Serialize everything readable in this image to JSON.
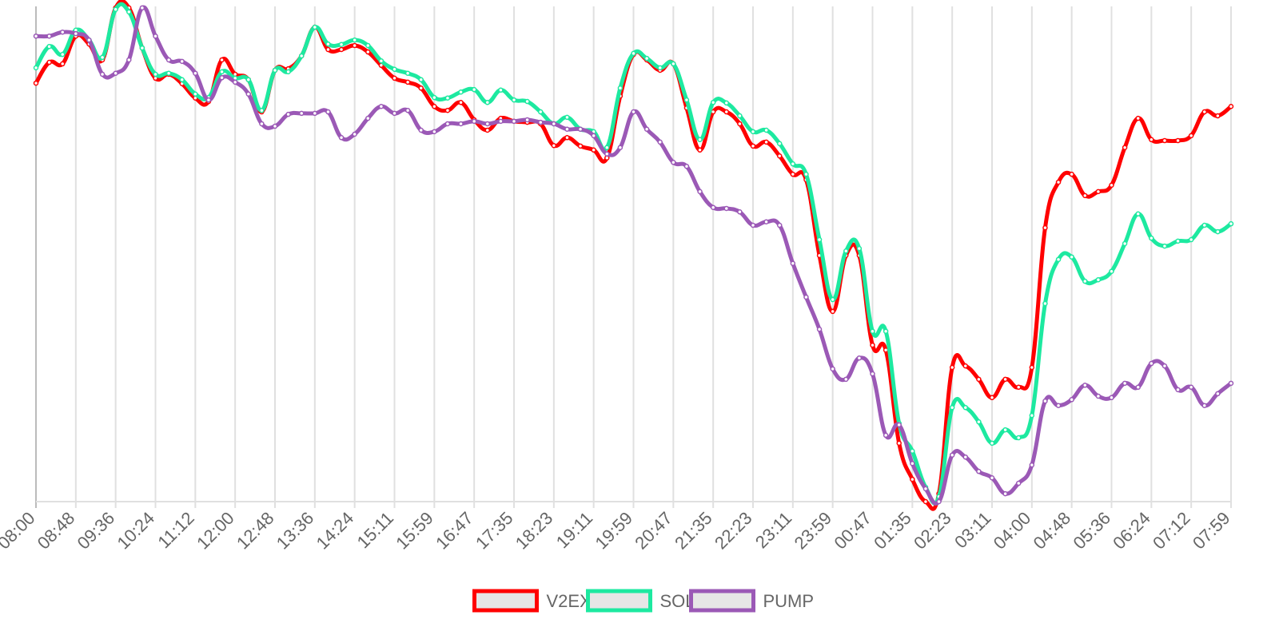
{
  "chart_data": {
    "type": "line",
    "categories": [
      "08:00",
      null,
      null,
      "08:48",
      null,
      null,
      "09:36",
      null,
      null,
      "10:24",
      null,
      null,
      "11:12",
      null,
      null,
      "12:00",
      null,
      null,
      "12:48",
      null,
      null,
      "13:36",
      null,
      null,
      "14:24",
      null,
      null,
      "15:11",
      null,
      null,
      "15:59",
      null,
      null,
      "16:47",
      null,
      null,
      "17:35",
      null,
      null,
      "18:23",
      null,
      null,
      "19:11",
      null,
      null,
      "19:59",
      null,
      null,
      "20:47",
      null,
      null,
      "21:35",
      null,
      null,
      "22:23",
      null,
      null,
      "23:11",
      null,
      null,
      "23:59",
      null,
      null,
      "00:47",
      null,
      null,
      "01:35",
      null,
      null,
      "02:23",
      null,
      null,
      "03:11",
      null,
      null,
      "04:00",
      null,
      null,
      "04:48",
      null,
      null,
      "05:36",
      null,
      null,
      "06:24",
      null,
      null,
      "07:12",
      null,
      null,
      "07:59"
    ],
    "series": [
      {
        "name": "V2EX",
        "color": "#ff0000",
        "values": [
          84.5,
          88.7,
          88.4,
          94,
          92.4,
          89.2,
          99.7,
          99.7,
          91.6,
          85.5,
          86.3,
          84.4,
          81.5,
          80.8,
          89.2,
          86.3,
          85.2,
          78.7,
          87.1,
          87.4,
          90,
          95.8,
          91.3,
          91.3,
          92.1,
          90.8,
          88.1,
          85.5,
          84.7,
          83.5,
          79.8,
          79,
          80.6,
          77.1,
          75,
          77.4,
          76.8,
          76.6,
          76.3,
          71.9,
          73.5,
          71.8,
          71,
          69.4,
          81.9,
          90.3,
          89.2,
          87.1,
          88.4,
          79.5,
          71,
          78.7,
          78.7,
          76.3,
          71.8,
          72.6,
          69.8,
          66.1,
          65,
          49.7,
          38.4,
          49.7,
          49.7,
          31.6,
          30.6,
          11.8,
          4.5,
          0,
          1.6,
          27.1,
          27.4,
          24.7,
          21,
          24.7,
          23.1,
          27.1,
          55.3,
          64.5,
          66.1,
          61.8,
          62.6,
          63.9,
          71.5,
          77.4,
          73.1,
          72.9,
          72.9,
          73.9,
          78.7,
          77.9,
          79.8
        ]
      },
      {
        "name": "SOL",
        "color": "#1de9a0",
        "values": [
          87.6,
          91.9,
          90.3,
          95.2,
          93.2,
          89.7,
          99.4,
          98.9,
          91.6,
          86.3,
          86.5,
          85.2,
          82.3,
          81.6,
          86.8,
          85.5,
          85.2,
          79,
          87.1,
          86.8,
          90,
          95.8,
          92.4,
          92.3,
          93.2,
          92.1,
          89,
          87.3,
          86.5,
          85.2,
          81.6,
          81.5,
          82.7,
          83.2,
          80.6,
          83.1,
          81.1,
          80.8,
          78.7,
          76.3,
          77.6,
          75.2,
          74.7,
          71.5,
          83.5,
          90.5,
          89.5,
          87.6,
          88.4,
          81.1,
          73.1,
          80.6,
          80.5,
          77.9,
          74.7,
          75,
          72.3,
          68.2,
          66.1,
          52.9,
          40.8,
          50.6,
          51.1,
          34.4,
          34.4,
          15.8,
          10.2,
          2.9,
          1,
          19,
          19,
          16.1,
          11.8,
          14.5,
          12.9,
          17.4,
          40,
          48.9,
          49.4,
          44.5,
          44.8,
          46.5,
          52.1,
          58.1,
          53.2,
          51.6,
          52.6,
          52.9,
          55.8,
          54.5,
          56.1
        ]
      },
      {
        "name": "PUMP",
        "color": "#9b59b6",
        "values": [
          94,
          94,
          94.8,
          94.5,
          93.2,
          86.3,
          86.5,
          89.2,
          99.7,
          94,
          89.2,
          88.9,
          86.5,
          81.1,
          85.6,
          84.7,
          82.3,
          76.3,
          75.8,
          78.2,
          78.4,
          78.4,
          78.7,
          73.5,
          74.2,
          77.4,
          79.8,
          78.4,
          79,
          75,
          74.7,
          76.3,
          76.3,
          76.8,
          76.3,
          76.8,
          76.8,
          77.1,
          76.6,
          76.3,
          75.2,
          75.2,
          73.9,
          70.2,
          71.5,
          78.7,
          75.2,
          72.6,
          68.5,
          67.7,
          62.6,
          59.4,
          59.2,
          58.5,
          55.8,
          56.5,
          55.8,
          48.1,
          41.3,
          34.8,
          26.8,
          24.7,
          29,
          25.8,
          13.4,
          15.5,
          7.7,
          2.6,
          0,
          9.4,
          9,
          6.1,
          4.8,
          1.6,
          3.7,
          7.4,
          20.3,
          19.4,
          20.6,
          23.5,
          21.3,
          21,
          23.9,
          23.1,
          27.9,
          27.4,
          22.6,
          23.1,
          19.4,
          21.8,
          23.9
        ]
      }
    ],
    "ylim": [
      0,
      100
    ],
    "grid": true,
    "legend": "bottom"
  }
}
